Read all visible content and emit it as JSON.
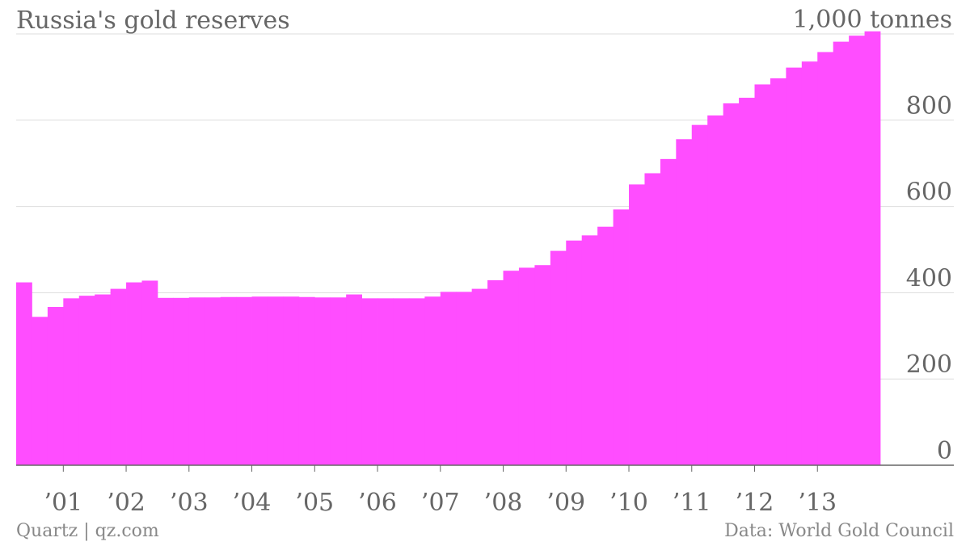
{
  "title": "Russia's gold reserves",
  "footer": {
    "source_left": "Quartz | qz.com",
    "source_right": "Data: World Gold Council"
  },
  "colors": {
    "bars": "#ff4dff",
    "grid": "#dddddd",
    "axis": "#666666"
  },
  "chart_data": {
    "type": "bar",
    "title": "Russia's gold reserves",
    "unit": "tonnes",
    "y_top_label": "1,000 tonnes",
    "ylim": [
      0,
      1000
    ],
    "yticks": [
      0,
      200,
      400,
      600,
      800,
      1000
    ],
    "ytick_labels": [
      "0",
      "200",
      "400",
      "600",
      "800",
      "1,000 tonnes"
    ],
    "xtick_labels": [
      "’01",
      "’02",
      "’03",
      "’04",
      "’05",
      "’06",
      "’07",
      "’08",
      "’09",
      "’10",
      "’11",
      "’12",
      "’13"
    ],
    "grid": true,
    "legend": "none",
    "series": [
      {
        "values": [
          424,
          344,
          367,
          387,
          393,
          396,
          409,
          424,
          428,
          388,
          388,
          389,
          389,
          390,
          390,
          391,
          391,
          391,
          390,
          389,
          389,
          396,
          387,
          387,
          387,
          387,
          391,
          402,
          402,
          409,
          429,
          451,
          458,
          464,
          497,
          521,
          533,
          553,
          593,
          651,
          677,
          710,
          756,
          789,
          811,
          839,
          852,
          883,
          897,
          922,
          936,
          958,
          982,
          996,
          1006
        ]
      }
    ]
  }
}
